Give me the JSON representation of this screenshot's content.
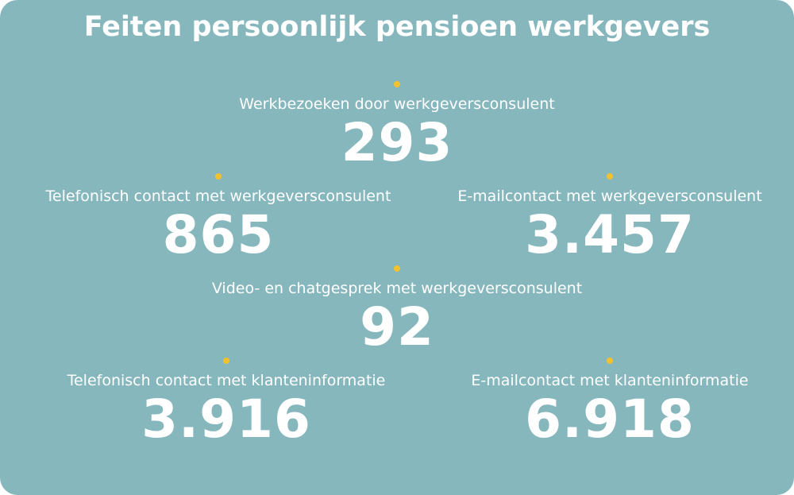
{
  "colors": {
    "background": "#86b7bd",
    "text": "#ffffff",
    "accent_dot": "#f2c12e"
  },
  "title": "Feiten persoonlijk pensioen werkgevers",
  "stats": [
    {
      "label": "Werkbezoeken door werkgeversconsulent",
      "value": "293"
    },
    {
      "label": "Telefonisch contact met werkgeversconsulent",
      "value": "865"
    },
    {
      "label": "E-mailcontact met werkgeversconsulent",
      "value": "3.457"
    },
    {
      "label": "Video- en chatgesprek met werkgeversconsulent",
      "value": "92"
    },
    {
      "label": "Telefonisch contact met klanteninformatie",
      "value": "3.916"
    },
    {
      "label": "E-mailcontact met klanteninformatie",
      "value": "6.918"
    }
  ]
}
